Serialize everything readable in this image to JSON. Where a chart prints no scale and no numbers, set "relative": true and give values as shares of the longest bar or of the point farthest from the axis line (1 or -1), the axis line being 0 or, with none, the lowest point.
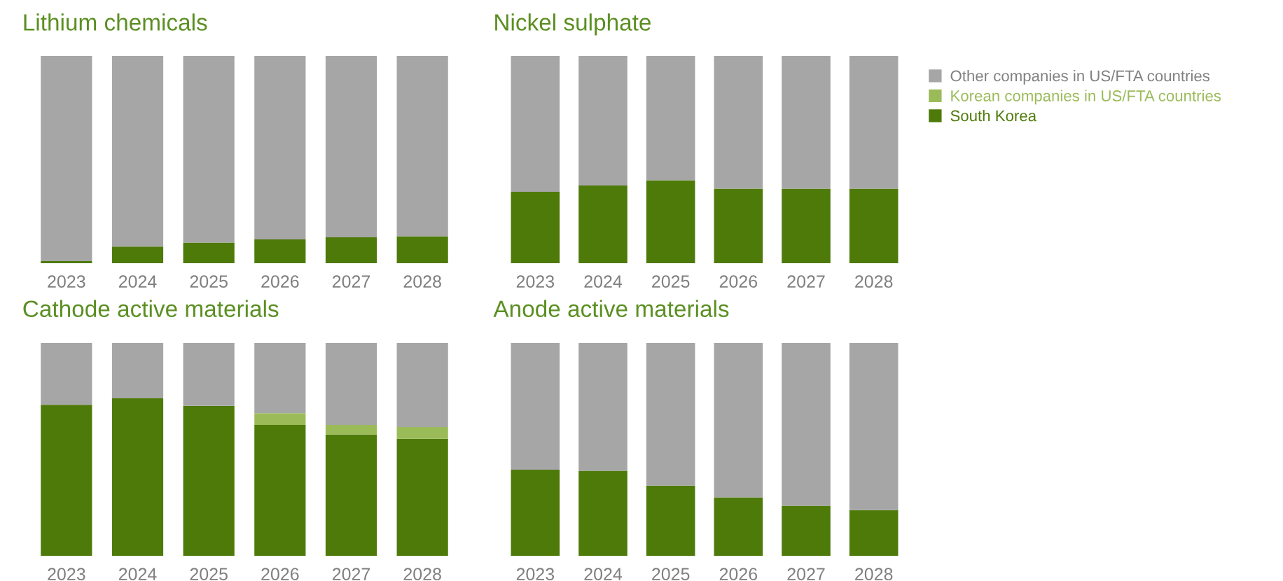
{
  "chart_data": [
    {
      "type": "bar",
      "title": "Lithium chemicals",
      "relative": true,
      "stacked": true,
      "categories": [
        "2023",
        "2024",
        "2025",
        "2026",
        "2027",
        "2028"
      ],
      "series": [
        {
          "color": "#4e7a0a",
          "values": [
            0.01,
            0.08,
            0.1,
            0.115,
            0.125,
            0.13
          ]
        },
        {
          "color": "#a6a6a6",
          "values": [
            0.99,
            0.92,
            0.9,
            0.885,
            0.875,
            0.87
          ]
        }
      ]
    },
    {
      "type": "bar",
      "title": "Nickel sulphate",
      "relative": true,
      "stacked": true,
      "legend": "top right",
      "categories": [
        "2023",
        "2024",
        "2025",
        "2026",
        "2027",
        "2028"
      ],
      "series": [
        {
          "name": "South Korea",
          "color": "#4e7a0a",
          "values": [
            0.345,
            0.375,
            0.4,
            0.36,
            0.36,
            0.36
          ]
        },
        {
          "name": "Korean companies in US/FTA countries",
          "color": "#9bbb59",
          "values": [
            0,
            0,
            0,
            0,
            0,
            0
          ]
        },
        {
          "name": "Other companies in US/FTA countries",
          "color": "#a6a6a6",
          "values": [
            0.655,
            0.625,
            0.6,
            0.64,
            0.64,
            0.64
          ]
        }
      ]
    },
    {
      "type": "bar",
      "title": "Cathode active materials",
      "relative": true,
      "stacked": true,
      "categories": [
        "2023",
        "2024",
        "2025",
        "2026",
        "2027",
        "2028"
      ],
      "series": [
        {
          "color": "#4e7a0a",
          "values": [
            0.71,
            0.74,
            0.705,
            0.615,
            0.57,
            0.55
          ]
        },
        {
          "color": "#9bbb59",
          "values": [
            0,
            0,
            0,
            0.055,
            0.045,
            0.055
          ]
        },
        {
          "color": "#a6a6a6",
          "values": [
            0.29,
            0.26,
            0.295,
            0.33,
            0.385,
            0.395
          ]
        }
      ]
    },
    {
      "type": "bar",
      "title": "Anode active materials",
      "relative": true,
      "stacked": true,
      "categories": [
        "2023",
        "2024",
        "2025",
        "2026",
        "2027",
        "2028"
      ],
      "series": [
        {
          "color": "#4e7a0a",
          "values": [
            0.405,
            0.4,
            0.33,
            0.275,
            0.235,
            0.215
          ]
        },
        {
          "color": "#a6a6a6",
          "values": [
            0.595,
            0.6,
            0.67,
            0.725,
            0.765,
            0.785
          ]
        }
      ]
    }
  ]
}
